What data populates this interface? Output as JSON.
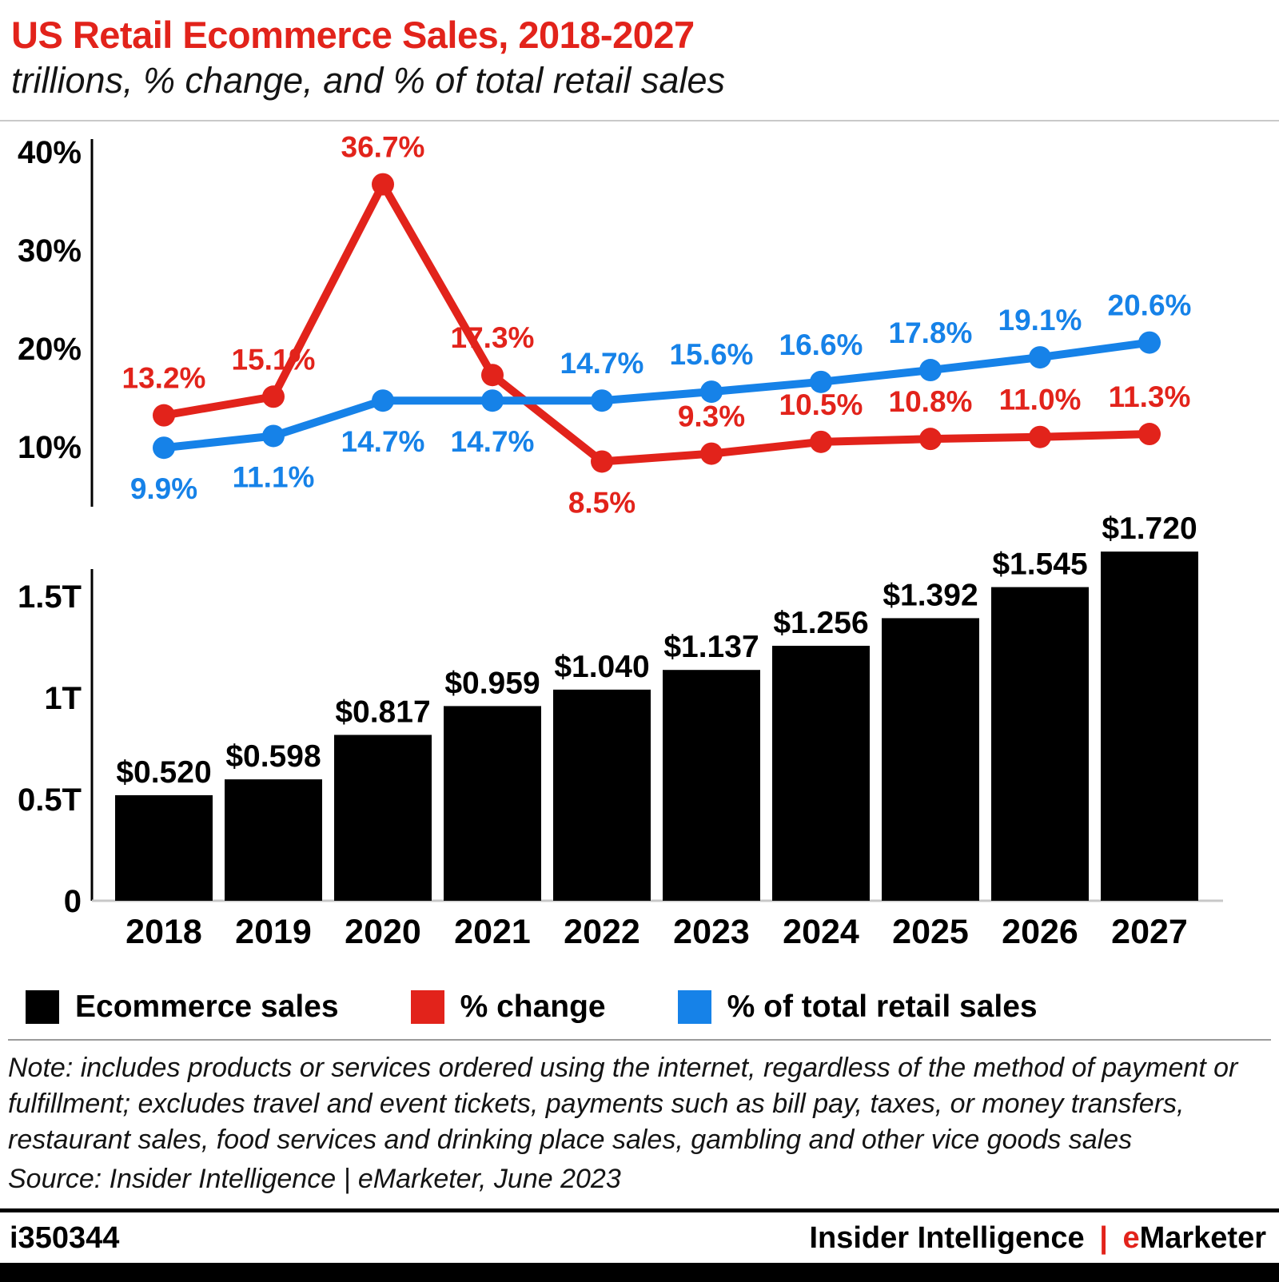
{
  "header": {
    "title": "US Retail Ecommerce Sales, 2018-2027",
    "subtitle": "trillions, % change, and % of total retail sales"
  },
  "chart_data": [
    {
      "type": "line",
      "categories": [
        "2018",
        "2019",
        "2020",
        "2021",
        "2022",
        "2023",
        "2024",
        "2025",
        "2026",
        "2027"
      ],
      "ylim": [
        0,
        40
      ],
      "grid": "off",
      "y_ticks": [
        {
          "value": 40,
          "label": "40%"
        },
        {
          "value": 30,
          "label": "30%"
        },
        {
          "value": 20,
          "label": "20%"
        },
        {
          "value": 10,
          "label": "10%"
        }
      ],
      "series": [
        {
          "name": "% change",
          "color": "#e2231b",
          "values": [
            13.2,
            15.1,
            36.7,
            17.3,
            8.5,
            9.3,
            10.5,
            10.8,
            11.0,
            11.3
          ],
          "labels": [
            "13.2%",
            "15.1%",
            "36.7%",
            "17.3%",
            "8.5%",
            "9.3%",
            "10.5%",
            "10.8%",
            "11.0%",
            "11.3%"
          ],
          "label_positions": [
            "above",
            "above",
            "above",
            "above",
            "below",
            "above",
            "above",
            "above",
            "above",
            "above"
          ]
        },
        {
          "name": "% of total retail sales",
          "color": "#1682e8",
          "values": [
            9.9,
            11.1,
            14.7,
            14.7,
            14.7,
            15.6,
            16.6,
            17.8,
            19.1,
            20.6
          ],
          "labels": [
            "9.9%",
            "11.1%",
            "14.7%",
            "14.7%",
            "14.7%",
            "15.6%",
            "16.6%",
            "17.8%",
            "19.1%",
            "20.6%"
          ],
          "label_positions": [
            "below",
            "below",
            "below",
            "below",
            "above",
            "above",
            "above",
            "above",
            "above",
            "above"
          ]
        }
      ]
    },
    {
      "type": "bar",
      "name": "Ecommerce sales",
      "categories": [
        "2018",
        "2019",
        "2020",
        "2021",
        "2022",
        "2023",
        "2024",
        "2025",
        "2026",
        "2027"
      ],
      "values": [
        0.52,
        0.598,
        0.817,
        0.959,
        1.04,
        1.137,
        1.256,
        1.392,
        1.545,
        1.72
      ],
      "labels": [
        "$0.520",
        "$0.598",
        "$0.817",
        "$0.959",
        "$1.040",
        "$1.137",
        "$1.256",
        "$1.392",
        "$1.545",
        "$1.720"
      ],
      "ylim": [
        0,
        1.5
      ],
      "grid": "off",
      "color": "#000000",
      "y_ticks": [
        {
          "value": 1.5,
          "label": "1.5T"
        },
        {
          "value": 1.0,
          "label": "1T"
        },
        {
          "value": 0.5,
          "label": "0.5T"
        },
        {
          "value": 0,
          "label": "0"
        }
      ]
    }
  ],
  "legend": {
    "items": [
      {
        "label": "Ecommerce sales",
        "color": "#000000"
      },
      {
        "label": "% change",
        "color": "#e2231b"
      },
      {
        "label": "% of total retail sales",
        "color": "#1682e8"
      }
    ]
  },
  "notes": {
    "note": "Note: includes products or services ordered using the internet, regardless of the method of payment or fulfillment; excludes travel and event tickets, payments such as bill pay, taxes, or money transfers, restaurant sales, food services and drinking place sales, gambling and other vice goods sales",
    "source": "Source: Insider Intelligence | eMarketer, June 2023"
  },
  "footer": {
    "chart_id": "i350344",
    "brand": "Insider Intelligence",
    "separator": "|",
    "emarketer_e": "e",
    "emarketer_rest": "Marketer"
  }
}
